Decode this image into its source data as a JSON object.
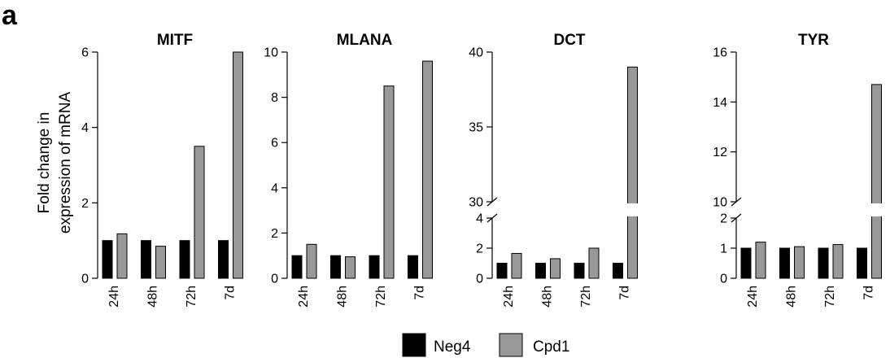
{
  "panel_label": "a",
  "legend": [
    {
      "name": "Neg4",
      "color": "#000000"
    },
    {
      "name": "Cpd1",
      "color": "#999999"
    }
  ],
  "chart_data": [
    {
      "type": "bar",
      "title": "MITF",
      "ylabel": "Fold change in expression of mRNA",
      "categories": [
        "24h",
        "48h",
        "72h",
        "7d"
      ],
      "ylim": [
        0,
        6
      ],
      "yticks": [
        0,
        2,
        4,
        6
      ],
      "broken": false,
      "series": [
        {
          "name": "Neg4",
          "values": [
            1.0,
            1.0,
            1.0,
            1.0
          ]
        },
        {
          "name": "Cpd1",
          "values": [
            1.18,
            0.85,
            3.5,
            6.0
          ]
        }
      ]
    },
    {
      "type": "bar",
      "title": "MLANA",
      "categories": [
        "24h",
        "48h",
        "72h",
        "7d"
      ],
      "ylim": [
        0,
        10
      ],
      "yticks": [
        0,
        2,
        4,
        6,
        8,
        10
      ],
      "broken": false,
      "series": [
        {
          "name": "Neg4",
          "values": [
            1.0,
            1.0,
            1.0,
            1.0
          ]
        },
        {
          "name": "Cpd1",
          "values": [
            1.5,
            0.95,
            8.5,
            9.6
          ]
        }
      ]
    },
    {
      "type": "bar",
      "title": "DCT",
      "categories": [
        "24h",
        "48h",
        "72h",
        "7d"
      ],
      "broken": true,
      "lower_range": [
        0,
        4
      ],
      "lower_ticks": [
        0,
        2,
        4
      ],
      "upper_range": [
        30,
        40
      ],
      "upper_ticks": [
        30,
        35,
        40
      ],
      "series": [
        {
          "name": "Neg4",
          "values": [
            1.0,
            1.0,
            1.0,
            1.0
          ]
        },
        {
          "name": "Cpd1",
          "values": [
            1.65,
            1.3,
            2.0,
            39.0
          ]
        }
      ]
    },
    {
      "type": "bar",
      "title": "TYR",
      "categories": [
        "24h",
        "48h",
        "72h",
        "7d"
      ],
      "broken": true,
      "lower_range": [
        0,
        2
      ],
      "lower_ticks": [
        0,
        1,
        2
      ],
      "upper_range": [
        10,
        16
      ],
      "upper_ticks": [
        10,
        12,
        14,
        16
      ],
      "series": [
        {
          "name": "Neg4",
          "values": [
            1.0,
            1.0,
            1.0,
            1.0
          ]
        },
        {
          "name": "Cpd1",
          "values": [
            1.2,
            1.05,
            1.12,
            14.7
          ]
        }
      ]
    }
  ]
}
